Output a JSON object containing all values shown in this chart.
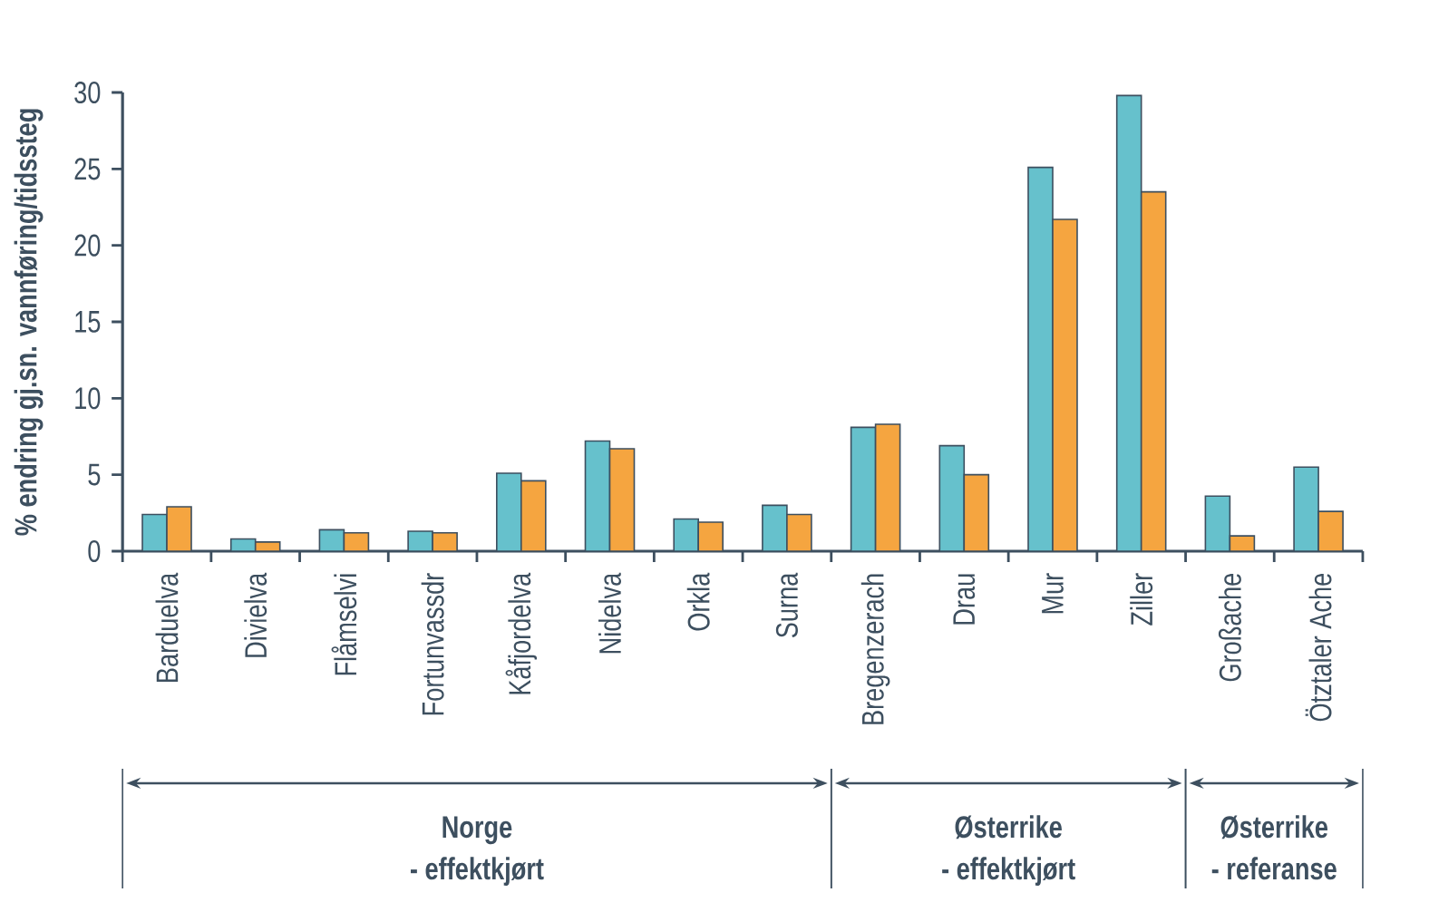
{
  "chart_data": {
    "type": "bar",
    "ylabel": "% endring gj.sn. vannføring/tidssteg",
    "categories": [
      "Barduelva",
      "Divielva",
      "Flåmselvi",
      "Fortunvassdr",
      "Kåfjordelva",
      "Nidelva",
      "Orkla",
      "Surna",
      "Bregenzerach",
      "Drau",
      "Mur",
      "Ziller",
      "Großache",
      "Ötztaler Ache"
    ],
    "series": [
      {
        "color": "#66c1cc",
        "values": [
          2.4,
          0.8,
          1.4,
          1.3,
          5.1,
          7.2,
          2.1,
          3.0,
          8.1,
          6.9,
          25.1,
          29.8,
          3.6,
          5.5
        ]
      },
      {
        "color": "#f5a540",
        "values": [
          2.9,
          0.6,
          1.2,
          1.2,
          4.6,
          6.7,
          1.9,
          2.4,
          8.3,
          5.0,
          21.7,
          23.5,
          1.0,
          2.6
        ]
      }
    ],
    "ylim": [
      0,
      30
    ],
    "yticks": [
      0,
      5,
      10,
      15,
      20,
      25,
      30
    ],
    "annotations": [
      "Norge",
      "- effektkjørt",
      "Østerrike",
      "- effektkjørt",
      "Østerrike",
      "- referanse"
    ]
  }
}
